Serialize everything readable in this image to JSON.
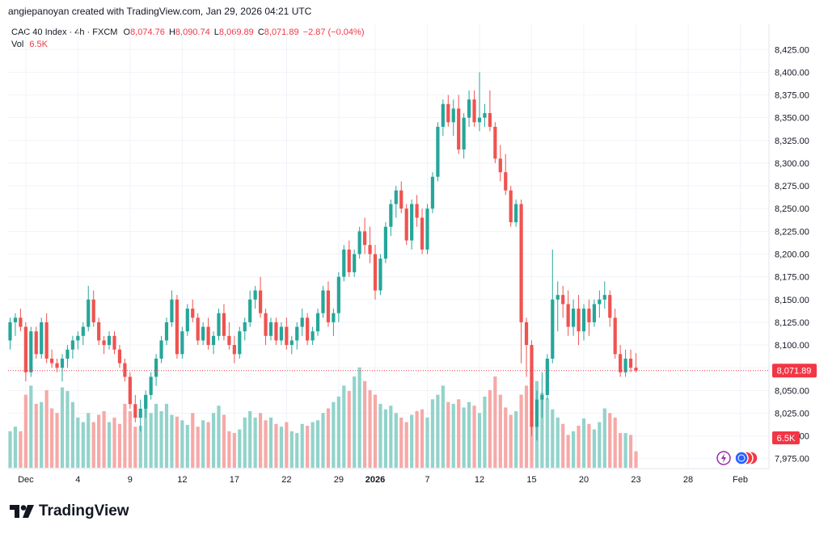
{
  "attribution": "angiepanoyan created with TradingView.com, Jan 29, 2026 04:21 UTC",
  "legend": {
    "symbol": "CAC 40 Index · 4h · FXCM",
    "o_label": "O",
    "o_value": "8,074.76",
    "h_label": "H",
    "h_value": "8,090.74",
    "l_label": "L",
    "l_value": "8,069.89",
    "c_label": "C",
    "c_value": "8,071.89",
    "change": "−2.87 (−0.04%)",
    "vol_label": "Vol",
    "vol_value": "6.5K"
  },
  "brand": "TradingView",
  "colors": {
    "up": "#26a69a",
    "down": "#ef5350",
    "vol_up": "#92d3cb",
    "vol_down": "#f6a9a7",
    "price_tag": "#f23645",
    "grid": "#f0f3fa",
    "text": "#131722"
  },
  "chart_data": {
    "type": "candlestick",
    "title": "CAC 40 Index · 4h · FXCM",
    "ylim": [
      7965,
      8435
    ],
    "y_ticks": [
      "8,425.00",
      "8,400.00",
      "8,375.00",
      "8,350.00",
      "8,325.00",
      "8,300.00",
      "8,275.00",
      "8,250.00",
      "8,225.00",
      "8,200.00",
      "8,175.00",
      "8,150.00",
      "8,125.00",
      "8,100.00",
      "8,075.00",
      "8,050.00",
      "8,025.00",
      "8,000.00",
      "7,975.00"
    ],
    "x_ticks": [
      {
        "label": "Dec",
        "bar": 3,
        "bold": false
      },
      {
        "label": "4",
        "bar": 13,
        "bold": false
      },
      {
        "label": "9",
        "bar": 23,
        "bold": false
      },
      {
        "label": "12",
        "bar": 33,
        "bold": false
      },
      {
        "label": "17",
        "bar": 43,
        "bold": false
      },
      {
        "label": "22",
        "bar": 53,
        "bold": false
      },
      {
        "label": "29",
        "bar": 63,
        "bold": false
      },
      {
        "label": "2026",
        "bar": 70,
        "bold": true
      },
      {
        "label": "7",
        "bar": 80,
        "bold": false
      },
      {
        "label": "12",
        "bar": 90,
        "bold": false
      },
      {
        "label": "15",
        "bar": 100,
        "bold": false
      },
      {
        "label": "20",
        "bar": 110,
        "bold": false
      },
      {
        "label": "23",
        "bar": 120,
        "bold": false
      },
      {
        "label": "28",
        "bar": 130,
        "bold": false
      },
      {
        "label": "Feb",
        "bar": 140,
        "bold": false
      }
    ],
    "last_price": 8071.89,
    "last_price_label": "8,071.89",
    "last_volume_label": "6.5K",
    "candles": [
      [
        8105,
        8130,
        8095,
        8125,
        40
      ],
      [
        8125,
        8135,
        8110,
        8130,
        45
      ],
      [
        8130,
        8140,
        8115,
        8120,
        40
      ],
      [
        8120,
        8125,
        8060,
        8070,
        80
      ],
      [
        8070,
        8120,
        8065,
        8115,
        90
      ],
      [
        8115,
        8120,
        8085,
        8090,
        70
      ],
      [
        8090,
        8130,
        8085,
        8125,
        72
      ],
      [
        8125,
        8135,
        8080,
        8085,
        85
      ],
      [
        8085,
        8095,
        8075,
        8080,
        65
      ],
      [
        8080,
        8085,
        8070,
        8075,
        60
      ],
      [
        8075,
        8090,
        8060,
        8085,
        88
      ],
      [
        8085,
        8100,
        8075,
        8095,
        84
      ],
      [
        8095,
        8110,
        8085,
        8105,
        72
      ],
      [
        8105,
        8115,
        8095,
        8110,
        55
      ],
      [
        8110,
        8125,
        8100,
        8120,
        50
      ],
      [
        8120,
        8165,
        8115,
        8150,
        60
      ],
      [
        8150,
        8160,
        8120,
        8125,
        50
      ],
      [
        8125,
        8130,
        8100,
        8105,
        58
      ],
      [
        8105,
        8110,
        8090,
        8100,
        62
      ],
      [
        8100,
        8115,
        8095,
        8110,
        50
      ],
      [
        8110,
        8115,
        8090,
        8095,
        55
      ],
      [
        8095,
        8100,
        8075,
        8080,
        48
      ],
      [
        8080,
        8085,
        8060,
        8065,
        70
      ],
      [
        8065,
        8070,
        8030,
        8035,
        62
      ],
      [
        8035,
        8045,
        8015,
        8020,
        45
      ],
      [
        8020,
        8040,
        8005,
        8030,
        46
      ],
      [
        8030,
        8050,
        8020,
        8045,
        80
      ],
      [
        8045,
        8070,
        8040,
        8065,
        60
      ],
      [
        8065,
        8090,
        8055,
        8085,
        70
      ],
      [
        8085,
        8110,
        8080,
        8105,
        62
      ],
      [
        8105,
        8130,
        8100,
        8125,
        70
      ],
      [
        8125,
        8160,
        8120,
        8150,
        58
      ],
      [
        8150,
        8155,
        8085,
        8090,
        56
      ],
      [
        8090,
        8120,
        8085,
        8115,
        52
      ],
      [
        8115,
        8145,
        8110,
        8140,
        47
      ],
      [
        8140,
        8150,
        8125,
        8130,
        60
      ],
      [
        8130,
        8135,
        8100,
        8105,
        45
      ],
      [
        8105,
        8125,
        8100,
        8120,
        52
      ],
      [
        8120,
        8130,
        8095,
        8100,
        50
      ],
      [
        8100,
        8115,
        8090,
        8110,
        60
      ],
      [
        8110,
        8140,
        8105,
        8135,
        68
      ],
      [
        8135,
        8145,
        8105,
        8110,
        58
      ],
      [
        8110,
        8125,
        8095,
        8100,
        40
      ],
      [
        8100,
        8110,
        8080,
        8090,
        38
      ],
      [
        8090,
        8120,
        8085,
        8115,
        42
      ],
      [
        8115,
        8130,
        8105,
        8125,
        55
      ],
      [
        8125,
        8160,
        8120,
        8150,
        62
      ],
      [
        8150,
        8165,
        8140,
        8160,
        55
      ],
      [
        8160,
        8175,
        8130,
        8135,
        60
      ],
      [
        8135,
        8140,
        8100,
        8110,
        52
      ],
      [
        8110,
        8130,
        8105,
        8125,
        55
      ],
      [
        8125,
        8130,
        8100,
        8105,
        48
      ],
      [
        8105,
        8125,
        8100,
        8120,
        45
      ],
      [
        8120,
        8130,
        8095,
        8100,
        50
      ],
      [
        8100,
        8110,
        8090,
        8105,
        40
      ],
      [
        8105,
        8125,
        8095,
        8120,
        38
      ],
      [
        8120,
        8140,
        8110,
        8130,
        48
      ],
      [
        8130,
        8135,
        8100,
        8105,
        46
      ],
      [
        8105,
        8120,
        8100,
        8115,
        50
      ],
      [
        8115,
        8140,
        8110,
        8135,
        52
      ],
      [
        8135,
        8165,
        8130,
        8160,
        60
      ],
      [
        8160,
        8170,
        8120,
        8125,
        65
      ],
      [
        8125,
        8140,
        8110,
        8135,
        72
      ],
      [
        8135,
        8180,
        8125,
        8175,
        78
      ],
      [
        8175,
        8210,
        8170,
        8205,
        90
      ],
      [
        8205,
        8215,
        8175,
        8180,
        84
      ],
      [
        8180,
        8205,
        8175,
        8200,
        100
      ],
      [
        8200,
        8230,
        8195,
        8225,
        110
      ],
      [
        8225,
        8240,
        8200,
        8210,
        95
      ],
      [
        8210,
        8230,
        8190,
        8200,
        85
      ],
      [
        8200,
        8210,
        8150,
        8160,
        80
      ],
      [
        8160,
        8200,
        8155,
        8195,
        70
      ],
      [
        8195,
        8235,
        8190,
        8230,
        64
      ],
      [
        8230,
        8260,
        8220,
        8255,
        68
      ],
      [
        8255,
        8275,
        8240,
        8270,
        60
      ],
      [
        8270,
        8280,
        8245,
        8250,
        55
      ],
      [
        8250,
        8255,
        8210,
        8215,
        50
      ],
      [
        8215,
        8260,
        8205,
        8255,
        58
      ],
      [
        8255,
        8265,
        8230,
        8240,
        62
      ],
      [
        8240,
        8250,
        8200,
        8205,
        64
      ],
      [
        8205,
        8255,
        8200,
        8250,
        55
      ],
      [
        8250,
        8290,
        8245,
        8285,
        75
      ],
      [
        8285,
        8345,
        8280,
        8340,
        80
      ],
      [
        8340,
        8370,
        8330,
        8365,
        90
      ],
      [
        8365,
        8375,
        8340,
        8345,
        72
      ],
      [
        8345,
        8370,
        8330,
        8360,
        70
      ],
      [
        8360,
        8375,
        8310,
        8315,
        75
      ],
      [
        8315,
        8355,
        8305,
        8350,
        66
      ],
      [
        8350,
        8380,
        8340,
        8370,
        72
      ],
      [
        8370,
        8380,
        8340,
        8345,
        68
      ],
      [
        8345,
        8400,
        8335,
        8350,
        60
      ],
      [
        8350,
        8365,
        8340,
        8355,
        78
      ],
      [
        8355,
        8380,
        8335,
        8340,
        85
      ],
      [
        8340,
        8345,
        8300,
        8305,
        100
      ],
      [
        8305,
        8320,
        8280,
        8290,
        80
      ],
      [
        8290,
        8310,
        8265,
        8270,
        66
      ],
      [
        8270,
        8275,
        8230,
        8235,
        58
      ],
      [
        8235,
        8260,
        8230,
        8255,
        62
      ],
      [
        8255,
        8260,
        8080,
        8125,
        80
      ],
      [
        8125,
        8130,
        8065,
        8100,
        90
      ],
      [
        8100,
        8105,
        8000,
        8010,
        100
      ],
      [
        8010,
        8050,
        7995,
        8040,
        95
      ],
      [
        8040,
        8070,
        8020,
        8045,
        82
      ],
      [
        8045,
        8090,
        8040,
        8085,
        76
      ],
      [
        8085,
        8205,
        8080,
        8150,
        64
      ],
      [
        8150,
        8170,
        8115,
        8155,
        55
      ],
      [
        8155,
        8165,
        8130,
        8145,
        48
      ],
      [
        8145,
        8160,
        8110,
        8120,
        36
      ],
      [
        8120,
        8150,
        8110,
        8140,
        40
      ],
      [
        8140,
        8155,
        8100,
        8115,
        46
      ],
      [
        8115,
        8145,
        8105,
        8140,
        54
      ],
      [
        8140,
        8150,
        8110,
        8125,
        48
      ],
      [
        8125,
        8150,
        8120,
        8145,
        42
      ],
      [
        8145,
        8160,
        8130,
        8150,
        50
      ],
      [
        8150,
        8170,
        8140,
        8155,
        65
      ],
      [
        8155,
        8160,
        8120,
        8130,
        60
      ],
      [
        8130,
        8140,
        8085,
        8090,
        55
      ],
      [
        8090,
        8100,
        8065,
        8070,
        38
      ],
      [
        8070,
        8095,
        8065,
        8085,
        38
      ],
      [
        8085,
        8095,
        8070,
        8075,
        36
      ],
      [
        8075,
        8091,
        8070,
        8072,
        18
      ]
    ]
  }
}
